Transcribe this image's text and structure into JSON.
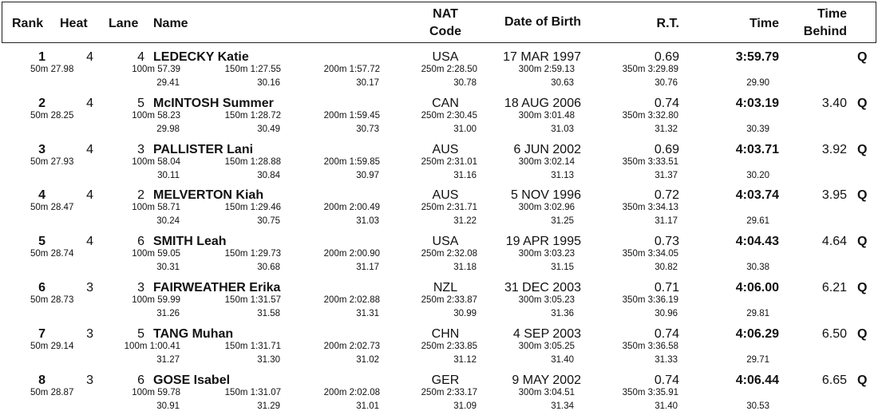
{
  "header": {
    "rank": "Rank",
    "heat": "Heat",
    "lane": "Lane",
    "name": "Name",
    "nat1": "NAT",
    "nat2": "Code",
    "dob": "Date of Birth",
    "rt": "R.T.",
    "time": "Time",
    "tb1": "Time",
    "tb2": "Behind"
  },
  "rows": [
    {
      "rank": "1",
      "heat": "4",
      "lane": "4",
      "name": "LEDECKY Katie",
      "nat": "USA",
      "dob": "17 MAR 1997",
      "rt": "0.69",
      "time": "3:59.79",
      "behind": "",
      "q": "Q",
      "s50": "50m 27.98",
      "s100": "100m 57.39",
      "s150": "150m 1:27.55",
      "s200": "200m 1:57.72",
      "s250": "250m 2:28.50",
      "s300": "300m 2:59.13",
      "s350": "350m 3:29.89",
      "l100": "29.41",
      "l150": "30.16",
      "l200": "30.17",
      "l250": "30.78",
      "l300": "30.63",
      "l350": "30.76",
      "l400": "29.90"
    },
    {
      "rank": "2",
      "heat": "4",
      "lane": "5",
      "name": "McINTOSH Summer",
      "nat": "CAN",
      "dob": "18 AUG 2006",
      "rt": "0.74",
      "time": "4:03.19",
      "behind": "3.40",
      "q": "Q",
      "s50": "50m 28.25",
      "s100": "100m 58.23",
      "s150": "150m 1:28.72",
      "s200": "200m 1:59.45",
      "s250": "250m 2:30.45",
      "s300": "300m 3:01.48",
      "s350": "350m 3:32.80",
      "l100": "29.98",
      "l150": "30.49",
      "l200": "30.73",
      "l250": "31.00",
      "l300": "31.03",
      "l350": "31.32",
      "l400": "30.39"
    },
    {
      "rank": "3",
      "heat": "4",
      "lane": "3",
      "name": "PALLISTER Lani",
      "nat": "AUS",
      "dob": "6 JUN 2002",
      "rt": "0.69",
      "time": "4:03.71",
      "behind": "3.92",
      "q": "Q",
      "s50": "50m 27.93",
      "s100": "100m 58.04",
      "s150": "150m 1:28.88",
      "s200": "200m 1:59.85",
      "s250": "250m 2:31.01",
      "s300": "300m 3:02.14",
      "s350": "350m 3:33.51",
      "l100": "30.11",
      "l150": "30.84",
      "l200": "30.97",
      "l250": "31.16",
      "l300": "31.13",
      "l350": "31.37",
      "l400": "30.20"
    },
    {
      "rank": "4",
      "heat": "4",
      "lane": "2",
      "name": "MELVERTON Kiah",
      "nat": "AUS",
      "dob": "5 NOV 1996",
      "rt": "0.72",
      "time": "4:03.74",
      "behind": "3.95",
      "q": "Q",
      "s50": "50m 28.47",
      "s100": "100m 58.71",
      "s150": "150m 1:29.46",
      "s200": "200m 2:00.49",
      "s250": "250m 2:31.71",
      "s300": "300m 3:02.96",
      "s350": "350m 3:34.13",
      "l100": "30.24",
      "l150": "30.75",
      "l200": "31.03",
      "l250": "31.22",
      "l300": "31.25",
      "l350": "31.17",
      "l400": "29.61"
    },
    {
      "rank": "5",
      "heat": "4",
      "lane": "6",
      "name": "SMITH Leah",
      "nat": "USA",
      "dob": "19 APR 1995",
      "rt": "0.73",
      "time": "4:04.43",
      "behind": "4.64",
      "q": "Q",
      "s50": "50m 28.74",
      "s100": "100m 59.05",
      "s150": "150m 1:29.73",
      "s200": "200m 2:00.90",
      "s250": "250m 2:32.08",
      "s300": "300m 3:03.23",
      "s350": "350m 3:34.05",
      "l100": "30.31",
      "l150": "30.68",
      "l200": "31.17",
      "l250": "31.18",
      "l300": "31.15",
      "l350": "30.82",
      "l400": "30.38"
    },
    {
      "rank": "6",
      "heat": "3",
      "lane": "3",
      "name": "FAIRWEATHER Erika",
      "nat": "NZL",
      "dob": "31 DEC 2003",
      "rt": "0.71",
      "time": "4:06.00",
      "behind": "6.21",
      "q": "Q",
      "s50": "50m 28.73",
      "s100": "100m 59.99",
      "s150": "150m 1:31.57",
      "s200": "200m 2:02.88",
      "s250": "250m 2:33.87",
      "s300": "300m 3:05.23",
      "s350": "350m 3:36.19",
      "l100": "31.26",
      "l150": "31.58",
      "l200": "31.31",
      "l250": "30.99",
      "l300": "31.36",
      "l350": "30.96",
      "l400": "29.81"
    },
    {
      "rank": "7",
      "heat": "3",
      "lane": "5",
      "name": "TANG Muhan",
      "nat": "CHN",
      "dob": "4 SEP 2003",
      "rt": "0.74",
      "time": "4:06.29",
      "behind": "6.50",
      "q": "Q",
      "s50": "50m 29.14",
      "s100": "100m 1:00.41",
      "s150": "150m 1:31.71",
      "s200": "200m 2:02.73",
      "s250": "250m 2:33.85",
      "s300": "300m 3:05.25",
      "s350": "350m 3:36.58",
      "l100": "31.27",
      "l150": "31.30",
      "l200": "31.02",
      "l250": "31.12",
      "l300": "31.40",
      "l350": "31.33",
      "l400": "29.71"
    },
    {
      "rank": "8",
      "heat": "3",
      "lane": "6",
      "name": "GOSE Isabel",
      "nat": "GER",
      "dob": "9 MAY 2002",
      "rt": "0.74",
      "time": "4:06.44",
      "behind": "6.65",
      "q": "Q",
      "s50": "50m 28.87",
      "s100": "100m 59.78",
      "s150": "150m 1:31.07",
      "s200": "200m 2:02.08",
      "s250": "250m 2:33.17",
      "s300": "300m 3:04.51",
      "s350": "350m 3:35.91",
      "l100": "30.91",
      "l150": "31.29",
      "l200": "31.01",
      "l250": "31.09",
      "l300": "31.34",
      "l350": "31.40",
      "l400": "30.53"
    }
  ]
}
